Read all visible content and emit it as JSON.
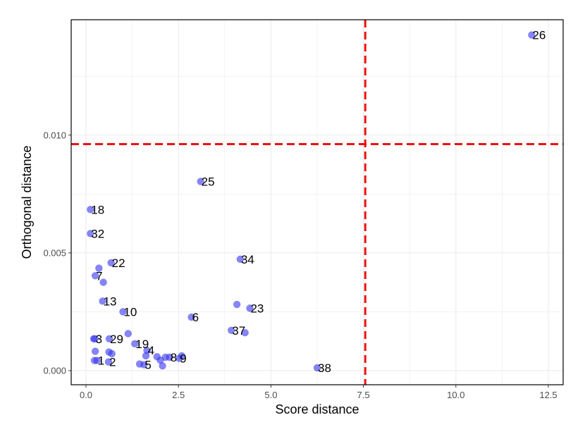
{
  "chart_data": {
    "type": "scatter",
    "title": "",
    "xlabel": "Score distance",
    "ylabel": "Orthogonal distance",
    "xlim": [
      -0.4,
      12.9
    ],
    "ylim": [
      -0.0006,
      0.0149
    ],
    "xticks": [
      0.0,
      2.5,
      5.0,
      7.5,
      10.0,
      12.5
    ],
    "xtick_labels": [
      "0.0",
      "2.5",
      "5.0",
      "7.5",
      "10.0",
      "12.5"
    ],
    "yticks": [
      0.0,
      0.005,
      0.01
    ],
    "ytick_labels": [
      "0.000",
      "0.005",
      "0.010"
    ],
    "grid": true,
    "cutoffs": {
      "score_distance": 7.55,
      "orthogonal_distance": 0.00962
    },
    "colors": {
      "point": "#3333ee",
      "cutoff": "#ee1111",
      "grid": "#ebebeb"
    },
    "points": [
      {
        "x": 12.05,
        "y": 0.01425,
        "label": "26"
      },
      {
        "x": 3.1,
        "y": 0.00803,
        "label": "25"
      },
      {
        "x": 0.12,
        "y": 0.00684,
        "label": "18"
      },
      {
        "x": 0.12,
        "y": 0.00582,
        "label": "32"
      },
      {
        "x": 4.17,
        "y": 0.00473,
        "label": "34"
      },
      {
        "x": 0.68,
        "y": 0.00458,
        "label": "22"
      },
      {
        "x": 0.35,
        "y": 0.00435,
        "label": ""
      },
      {
        "x": 0.25,
        "y": 0.00403,
        "label": "7"
      },
      {
        "x": 0.47,
        "y": 0.00375,
        "label": ""
      },
      {
        "x": 0.45,
        "y": 0.00295,
        "label": "13"
      },
      {
        "x": 4.08,
        "y": 0.00281,
        "label": ""
      },
      {
        "x": 4.43,
        "y": 0.00265,
        "label": "23"
      },
      {
        "x": 1.0,
        "y": 0.0025,
        "label": "10"
      },
      {
        "x": 2.85,
        "y": 0.00227,
        "label": "6"
      },
      {
        "x": 3.93,
        "y": 0.00171,
        "label": "37"
      },
      {
        "x": 4.3,
        "y": 0.00161,
        "label": ""
      },
      {
        "x": 1.14,
        "y": 0.00157,
        "label": ""
      },
      {
        "x": 0.21,
        "y": 0.00135,
        "label": ""
      },
      {
        "x": 0.24,
        "y": 0.00135,
        "label": "3"
      },
      {
        "x": 0.63,
        "y": 0.00135,
        "label": "29"
      },
      {
        "x": 1.32,
        "y": 0.00114,
        "label": "19"
      },
      {
        "x": 1.65,
        "y": 0.00086,
        "label": "4"
      },
      {
        "x": 0.25,
        "y": 0.00082,
        "label": ""
      },
      {
        "x": 0.62,
        "y": 0.00079,
        "label": ""
      },
      {
        "x": 0.7,
        "y": 0.00072,
        "label": ""
      },
      {
        "x": 1.62,
        "y": 0.00063,
        "label": ""
      },
      {
        "x": 1.92,
        "y": 0.00059,
        "label": ""
      },
      {
        "x": 2.15,
        "y": 0.00057,
        "label": ""
      },
      {
        "x": 2.26,
        "y": 0.00057,
        "label": "8"
      },
      {
        "x": 2.59,
        "y": 0.00063,
        "label": ""
      },
      {
        "x": 2.52,
        "y": 0.00052,
        "label": "9"
      },
      {
        "x": 2.01,
        "y": 0.00044,
        "label": ""
      },
      {
        "x": 0.23,
        "y": 0.00043,
        "label": ""
      },
      {
        "x": 0.3,
        "y": 0.00043,
        "label": "1"
      },
      {
        "x": 0.61,
        "y": 0.00037,
        "label": "2"
      },
      {
        "x": 1.45,
        "y": 0.00028,
        "label": ""
      },
      {
        "x": 1.57,
        "y": 0.00025,
        "label": "5"
      },
      {
        "x": 2.07,
        "y": 0.0002,
        "label": ""
      },
      {
        "x": 6.25,
        "y": 0.00012,
        "label": "38"
      }
    ]
  }
}
